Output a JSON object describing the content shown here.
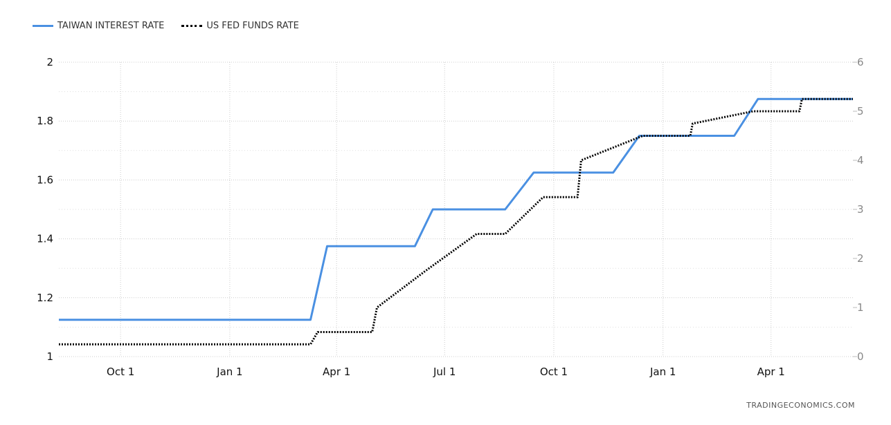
{
  "legend": {
    "series1": "TAIWAN INTEREST RATE",
    "series2": "US FED FUNDS RATE"
  },
  "footer": "TRADINGECONOMICS.COM",
  "colors": {
    "taiwan": "#4a90e2",
    "fed": "#000000",
    "grid": "#cccccc"
  },
  "chart_data": {
    "type": "line",
    "x_ticks": [
      "Oct 1",
      "Jan 1",
      "Apr 1",
      "Jul 1",
      "Oct 1",
      "Jan 1",
      "Apr 1"
    ],
    "x_tick_dates": [
      "2022-10-01",
      "2023-01-01",
      "2023-04-01",
      "2023-07-01",
      "2023-10-01",
      "2024-01-01",
      "2024-04-01"
    ],
    "x_range": [
      "2022-08-10",
      "2024-06-09"
    ],
    "y_left_ticks": [
      "1",
      "1.2",
      "1.4",
      "1.6",
      "1.8",
      "2"
    ],
    "y_left_range": [
      1,
      2
    ],
    "y_right_ticks": [
      "0",
      "1",
      "2",
      "3",
      "4",
      "5",
      "6"
    ],
    "y_right_range": [
      0,
      6
    ],
    "grid": true,
    "legend_position": "top-left",
    "series": [
      {
        "name": "TAIWAN INTEREST RATE",
        "axis": "left",
        "style": "solid",
        "points": [
          [
            "2022-08-10",
            1.125
          ],
          [
            "2023-03-10",
            1.125
          ],
          [
            "2023-03-24",
            1.375
          ],
          [
            "2023-06-06",
            1.375
          ],
          [
            "2023-06-21",
            1.5
          ],
          [
            "2023-08-21",
            1.5
          ],
          [
            "2023-09-14",
            1.625
          ],
          [
            "2023-11-20",
            1.625
          ],
          [
            "2023-12-12",
            1.75
          ],
          [
            "2024-03-01",
            1.75
          ],
          [
            "2024-03-21",
            1.875
          ],
          [
            "2024-06-09",
            1.875
          ]
        ]
      },
      {
        "name": "US FED FUNDS RATE",
        "axis": "right",
        "style": "dotted",
        "points": [
          [
            "2022-08-10",
            0.25
          ],
          [
            "2023-03-10",
            0.25
          ],
          [
            "2023-03-16",
            0.5
          ],
          [
            "2023-05-01",
            0.5
          ],
          [
            "2023-05-05",
            1.0
          ],
          [
            "2023-06-15",
            1.75
          ],
          [
            "2023-07-28",
            2.5
          ],
          [
            "2023-08-21",
            2.5
          ],
          [
            "2023-09-22",
            3.25
          ],
          [
            "2023-10-21",
            3.25
          ],
          [
            "2023-10-24",
            4.0
          ],
          [
            "2023-12-15",
            4.5
          ],
          [
            "2024-01-24",
            4.5
          ],
          [
            "2024-01-26",
            4.75
          ],
          [
            "2024-03-17",
            5.0
          ],
          [
            "2024-04-25",
            5.0
          ],
          [
            "2024-04-27",
            5.25
          ],
          [
            "2024-06-09",
            5.25
          ]
        ]
      }
    ]
  }
}
